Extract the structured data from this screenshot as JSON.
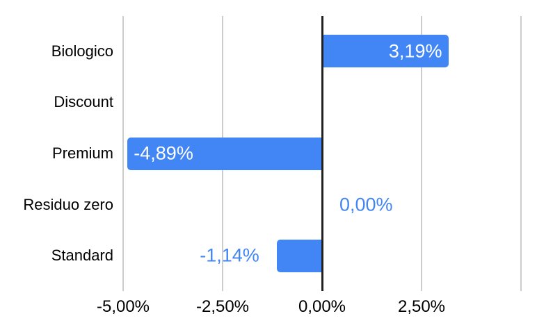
{
  "chart_data": {
    "type": "bar",
    "orientation": "horizontal",
    "title": "",
    "xlabel": "",
    "ylabel": "",
    "legend": "none",
    "grid": true,
    "categories": [
      "Biologico",
      "Discount",
      "Premium",
      "Residuo zero",
      "Standard"
    ],
    "values": [
      3.19,
      null,
      -4.89,
      0,
      -1.14
    ],
    "value_labels": [
      "3,19%",
      null,
      "-4,89%",
      "0,00%",
      "-1,14%"
    ],
    "label_placement": [
      "inside-end",
      "none",
      "inside-end",
      "outside-end",
      "outside-end"
    ],
    "x_ticks": [
      {
        "value": -5,
        "label": "-5,00%"
      },
      {
        "value": -2.5,
        "label": "-2,50%"
      },
      {
        "value": 0,
        "label": "0,00%"
      },
      {
        "value": 2.5,
        "label": "2,50%"
      },
      {
        "value": 5,
        "label": ""
      }
    ],
    "axis_range": [
      -5,
      5
    ],
    "colors": {
      "bar": "#4285f4",
      "gridline": "#cccccc",
      "baseline": "#212121",
      "category_text": "#000000",
      "tick_text": "#000000",
      "label_inside": "#ffffff",
      "label_outside": "#4285f4",
      "background": "#ffffff"
    }
  }
}
